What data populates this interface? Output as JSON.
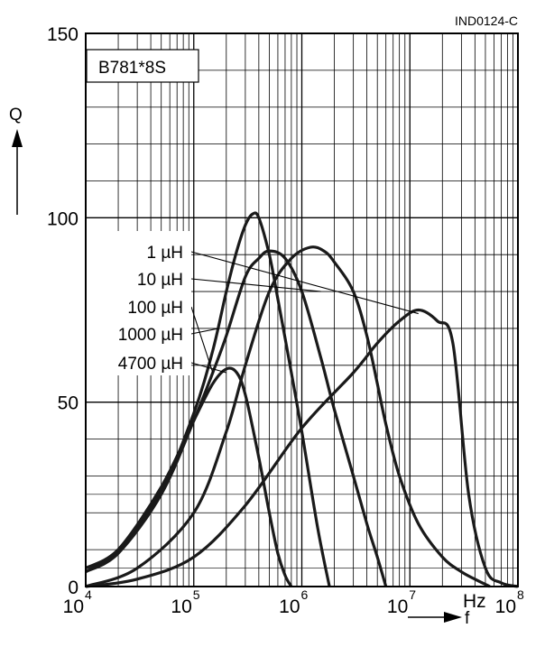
{
  "figure_id": "IND0124-C",
  "chart_data": {
    "type": "line",
    "title": "B781*8S",
    "xlabel": "f",
    "x_unit": "Hz",
    "ylabel": "Q",
    "x_scale": "log",
    "xlim": [
      10000,
      100000000
    ],
    "ylim": [
      0,
      150
    ],
    "x_ticks": [
      {
        "base": "10",
        "exp": "4"
      },
      {
        "base": "10",
        "exp": "5"
      },
      {
        "base": "10",
        "exp": "6"
      },
      {
        "base": "10",
        "exp": "7"
      },
      {
        "base": "10",
        "exp": "8"
      }
    ],
    "y_ticks": [
      "0",
      "50",
      "100",
      "150"
    ],
    "grid": true,
    "series": [
      {
        "name": "1 µH",
        "x": [
          10000,
          30000,
          100000,
          300000,
          1000000,
          3000000,
          5000000,
          8000000,
          12000000,
          18000000,
          25000000,
          35000000,
          50000000,
          70000000,
          100000000
        ],
        "y": [
          0,
          2,
          8,
          22,
          43,
          58,
          66,
          72,
          75,
          72,
          66,
          25,
          5,
          1,
          0
        ]
      },
      {
        "name": "10 µH",
        "x": [
          10000,
          30000,
          100000,
          200000,
          300000,
          500000,
          800000,
          1200000,
          1600000,
          2000000,
          3000000,
          4000000,
          5000000,
          6000000,
          8000000,
          12000000,
          20000000,
          30000000,
          40000000,
          55000000
        ],
        "y": [
          0,
          5,
          20,
          42,
          60,
          80,
          89,
          92,
          91,
          88,
          80,
          68,
          55,
          44,
          30,
          17,
          8,
          4,
          2,
          0
        ]
      },
      {
        "name": "100 µH",
        "x": [
          10000,
          20000,
          50000,
          100000,
          150000,
          200000,
          300000,
          400000,
          500000,
          700000,
          1000000,
          1500000,
          2000000,
          3000000,
          4000000,
          5000000,
          6000000
        ],
        "y": [
          4,
          9,
          25,
          45,
          58,
          68,
          84,
          89,
          91,
          89,
          80,
          62,
          48,
          30,
          17,
          8,
          0
        ]
      },
      {
        "name": "1000 µH",
        "x": [
          10000,
          20000,
          50000,
          100000,
          150000,
          200000,
          250000,
          300000,
          350000,
          400000,
          500000,
          600000,
          800000,
          1000000,
          1400000,
          1800000
        ],
        "y": [
          5,
          10,
          26,
          47,
          64,
          80,
          91,
          98,
          101,
          100,
          90,
          78,
          58,
          42,
          16,
          0
        ]
      },
      {
        "name": "4700 µH",
        "x": [
          10000,
          20000,
          50000,
          100000,
          150000,
          200000,
          250000,
          300000,
          400000,
          500000,
          600000,
          700000,
          800000
        ],
        "y": [
          4,
          10,
          27,
          45,
          55,
          59,
          58,
          52,
          35,
          20,
          9,
          3,
          0
        ]
      }
    ],
    "labels": [
      "1 µH",
      "10 µH",
      "100 µH",
      "1000 µH",
      "4700 µH"
    ]
  }
}
